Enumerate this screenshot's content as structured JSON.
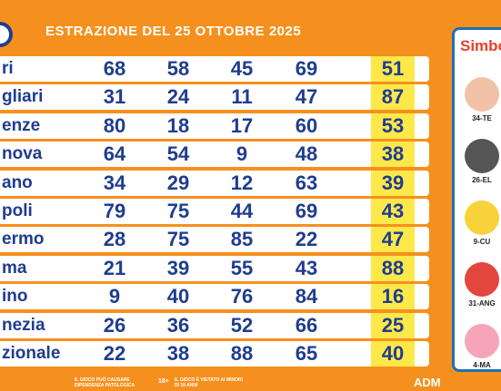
{
  "title": "ESTRAZIONE DEL 25 OTTOBRE 2025",
  "table": {
    "rows": [
      {
        "city": "ri",
        "numbers": [
          68,
          58,
          45,
          69,
          51
        ]
      },
      {
        "city": "gliari",
        "numbers": [
          31,
          24,
          11,
          47,
          87
        ]
      },
      {
        "city": "enze",
        "numbers": [
          80,
          18,
          17,
          60,
          53
        ]
      },
      {
        "city": "nova",
        "numbers": [
          64,
          54,
          9,
          48,
          38
        ]
      },
      {
        "city": "ano",
        "numbers": [
          34,
          29,
          12,
          63,
          39
        ]
      },
      {
        "city": "poli",
        "numbers": [
          79,
          75,
          44,
          69,
          43
        ]
      },
      {
        "city": "ermo",
        "numbers": [
          28,
          75,
          85,
          22,
          47
        ]
      },
      {
        "city": "ma",
        "numbers": [
          21,
          39,
          55,
          43,
          88
        ]
      },
      {
        "city": "ino",
        "numbers": [
          9,
          40,
          76,
          84,
          16
        ]
      },
      {
        "city": "nezia",
        "numbers": [
          26,
          36,
          52,
          66,
          25
        ]
      },
      {
        "city": "zionale",
        "numbers": [
          22,
          38,
          88,
          65,
          40
        ]
      }
    ]
  },
  "panel": {
    "title": "Simbo",
    "symbols": [
      "34-TE",
      "26-EL",
      "9-CU",
      "31-ANG",
      "4-MA"
    ]
  },
  "footer": {
    "warning": "IL GIOCO PUÒ CAUSARE DIPENDENZA PATOLOGICA",
    "age": "18+",
    "minors": "IL GIOCO È VIETATO AI MINORI DI 18 ANNI",
    "brand": "ADM"
  }
}
